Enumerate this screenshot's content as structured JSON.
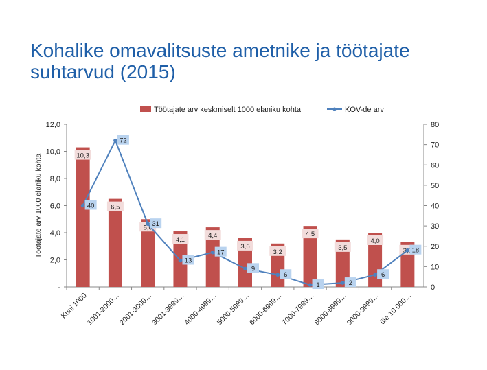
{
  "page": {
    "title": "Kohalike omavalitsuste ametnike ja töötajate suhtarvud (2015)"
  },
  "colors": {
    "bar": "#c0504d",
    "line": "#4f81bd",
    "bar_label_bg": "#f2dcdb",
    "line_label_bg": "#b9d3ef",
    "title": "#1f5fa8"
  },
  "chart_data": {
    "type": "bar+line",
    "legend_position": "top",
    "categories": [
      "Kuni 1000",
      "1001-2000…",
      "2001-3000…",
      "3001-3999…",
      "4000-4999…",
      "5000-5999…",
      "6000-6999…",
      "7000-7999…",
      "8000-8999…",
      "9000-9999…",
      "üle 10 000…"
    ],
    "series": [
      {
        "name": "Töötajate arv keskmiselt 1000 elaniku kohta",
        "type": "bar",
        "axis": "left",
        "values": [
          10.3,
          6.5,
          5.0,
          4.1,
          4.4,
          3.6,
          3.2,
          4.5,
          3.5,
          4.0,
          3.3
        ],
        "labels": [
          "10,3",
          "6,5",
          "5,0",
          "4,1",
          "4,4",
          "3,6",
          "3,2",
          "4,5",
          "3,5",
          "4,0",
          "3,3"
        ]
      },
      {
        "name": "KOV-de arv",
        "type": "line",
        "axis": "right",
        "values": [
          40,
          72,
          31,
          13,
          17,
          9,
          6,
          1,
          2,
          6,
          18
        ],
        "labels": [
          "40",
          "72",
          "31",
          "13",
          "17",
          "9",
          "6",
          "1",
          "2",
          "6",
          "18"
        ]
      }
    ],
    "ylabel": "Töötajate arv 1000 elaniku kohta",
    "ylim": [
      0,
      12
    ],
    "yticks": [
      "-",
      "2,0",
      "4,0",
      "6,0",
      "8,0",
      "10,0",
      "12,0"
    ],
    "y2lim": [
      0,
      80
    ],
    "y2ticks": [
      "0",
      "10",
      "20",
      "30",
      "40",
      "50",
      "60",
      "70",
      "80"
    ]
  }
}
